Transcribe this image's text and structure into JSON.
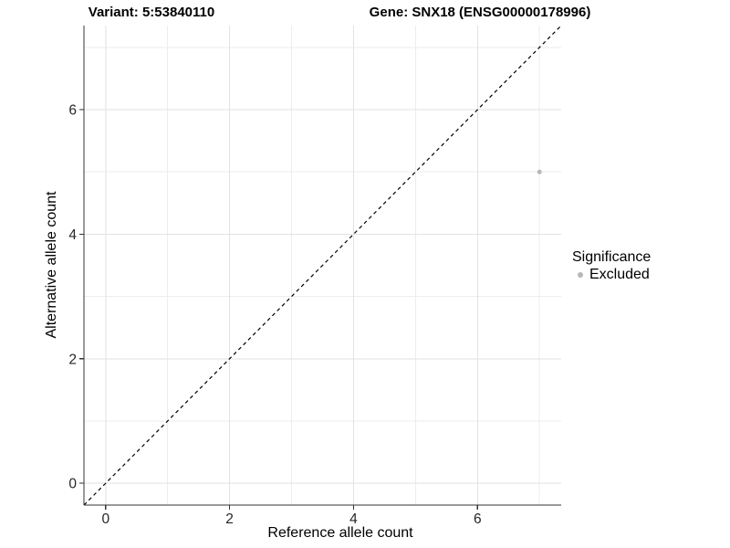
{
  "chart_data": {
    "type": "scatter",
    "title_left": "Variant: 5:53840110",
    "title_right": "Gene: SNX18 (ENSG00000178996)",
    "xlabel": "Reference allele count",
    "ylabel": "Alternative allele count",
    "xlim": [
      -0.35,
      7.35
    ],
    "ylim": [
      -0.35,
      7.35
    ],
    "x_ticks": [
      0,
      2,
      4,
      6
    ],
    "y_ticks": [
      0,
      2,
      4,
      6
    ],
    "x_minor_gridlines": [
      1,
      3,
      5,
      7
    ],
    "y_minor_gridlines": [
      1,
      3,
      5,
      7
    ],
    "grid": true,
    "legend_position": "right",
    "identity_line": {
      "style": "dashed",
      "from": [
        -0.35,
        -0.35
      ],
      "to": [
        7.35,
        7.35
      ],
      "color": "#000000"
    },
    "series": [
      {
        "name": "Excluded",
        "color": "#b8b8b8",
        "points": [
          {
            "x": 7,
            "y": 5
          }
        ]
      }
    ],
    "legend": {
      "title": "Significance",
      "items": [
        {
          "label": "Excluded",
          "color": "#b8b8b8"
        }
      ]
    },
    "colors": {
      "background": "#ffffff",
      "axis_line": "#333333",
      "tick_mark": "#333333",
      "tick_text": "#262626",
      "grid_major": "#e2e2e2",
      "grid_minor": "#ededed"
    }
  }
}
